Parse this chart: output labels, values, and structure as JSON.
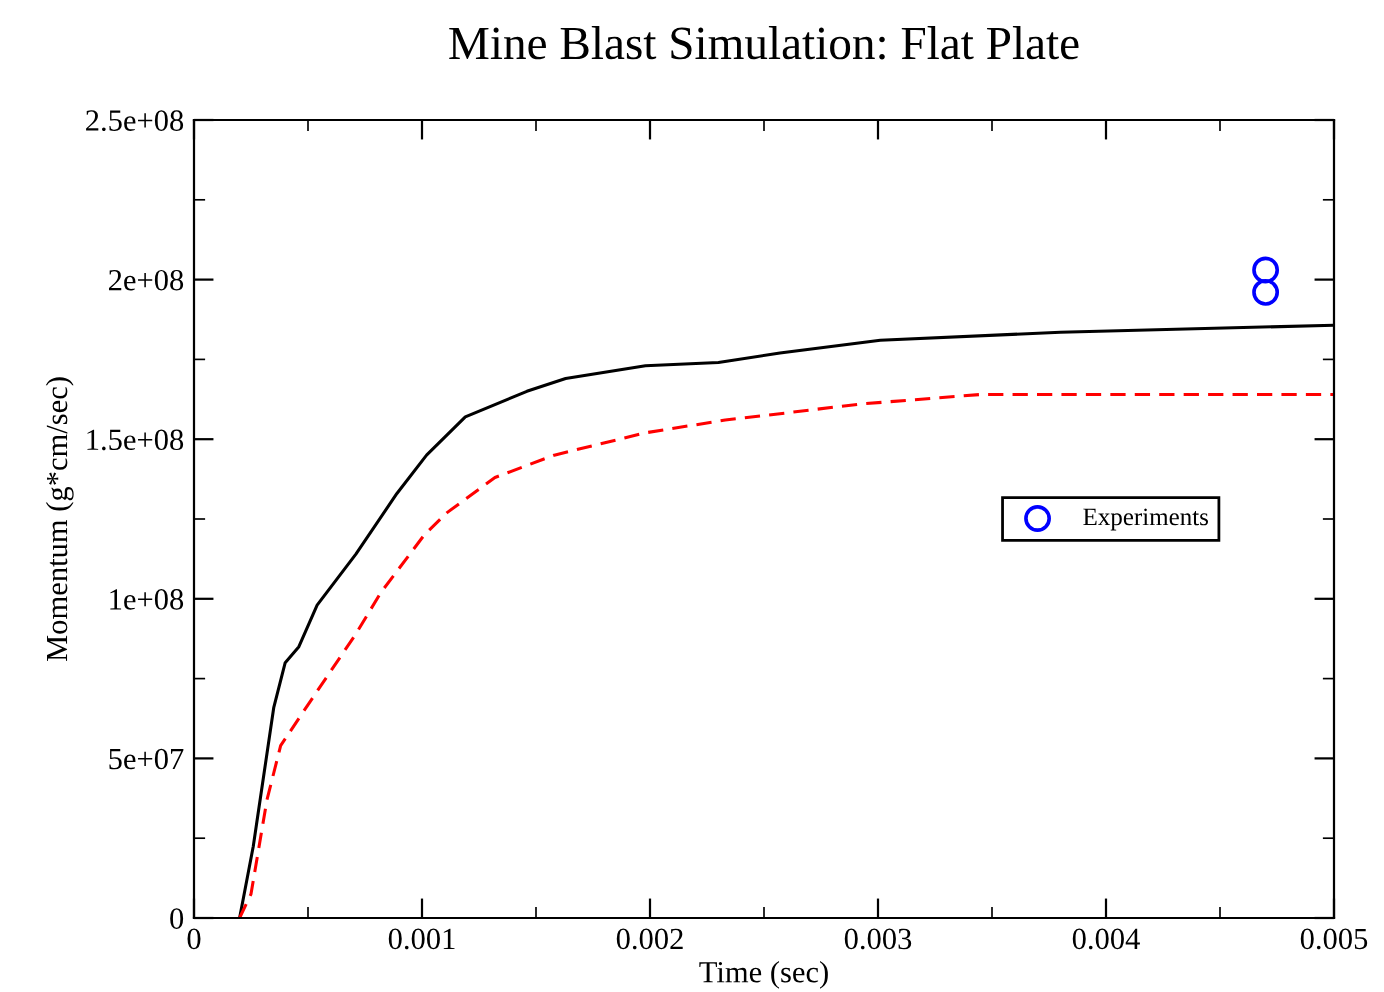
{
  "chart_data": {
    "type": "line",
    "title": "Mine Blast Simulation: Flat Plate",
    "xlabel": "Time (sec)",
    "ylabel": "Momentum (g*cm/sec)",
    "xlim": [
      0,
      0.005
    ],
    "xticks": [
      0,
      0.001,
      0.002,
      0.003,
      0.004,
      0.005
    ],
    "ylim": [
      0,
      250000000
    ],
    "yticks": [
      {
        "value": 0,
        "label": "0"
      },
      {
        "value": 50000000,
        "label": "5e+07"
      },
      {
        "value": 100000000,
        "label": "1e+08"
      },
      {
        "value": 150000000,
        "label": "1.5e+08"
      },
      {
        "value": 200000000,
        "label": "2e+08"
      },
      {
        "value": 250000000,
        "label": "2.5e+08"
      }
    ],
    "grid": false,
    "legend": "right",
    "series": [
      {
        "color": "#000000",
        "line_style": "solid",
        "x": [
          0.0002,
          0.00026,
          0.00035,
          0.0004,
          0.00046,
          0.00054,
          0.00071,
          0.00089,
          0.00102,
          0.00119,
          0.00146,
          0.00163,
          0.00198,
          0.0023,
          0.00257,
          0.00301,
          0.0038,
          0.005
        ],
        "values": [
          0,
          22500000,
          66000000,
          80000000,
          85000000,
          98000000,
          114000000,
          133000000,
          145000000,
          157000000,
          165000000,
          169000000,
          173000000,
          174000000,
          177000000,
          181000000,
          183500000,
          185700000
        ]
      },
      {
        "color": "#ff0000",
        "line_style": "dashed",
        "x": [
          0.0002,
          0.00025,
          0.00032,
          0.00038,
          0.00053,
          0.00071,
          0.00082,
          0.00101,
          0.00111,
          0.00132,
          0.00158,
          0.00198,
          0.00233,
          0.00257,
          0.00292,
          0.00345,
          0.005
        ],
        "values": [
          0,
          7500000,
          37000000,
          54000000,
          70000000,
          89000000,
          102000000,
          120000000,
          127000000,
          138000000,
          145000000,
          152000000,
          156000000,
          158000000,
          161000000,
          164000000,
          164000000
        ]
      },
      {
        "name": "Experiments",
        "type": "scatter",
        "color": "#0000ff",
        "marker": "circle",
        "x": [
          0.0047,
          0.0047
        ],
        "values": [
          203000000,
          196000000
        ]
      }
    ]
  }
}
